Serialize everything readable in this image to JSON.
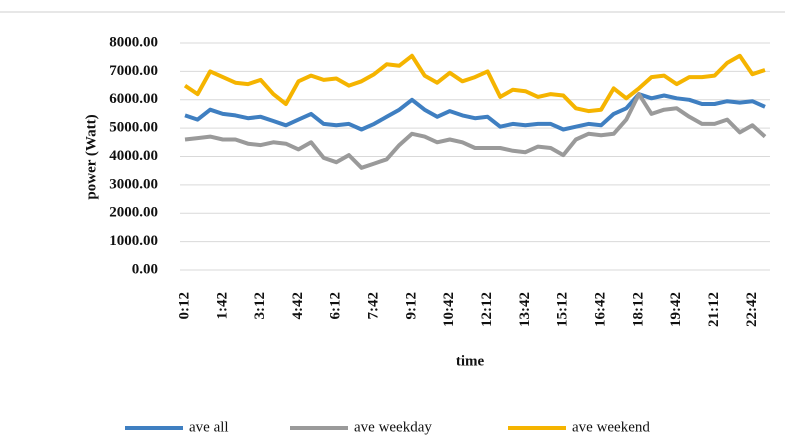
{
  "chart_data": {
    "type": "line",
    "x_label": "time",
    "y_label": "power (Watt)",
    "categories": [
      "0:12",
      null,
      null,
      "1:42",
      null,
      null,
      "3:12",
      null,
      null,
      "4:42",
      null,
      null,
      "6:12",
      null,
      null,
      "7:42",
      null,
      null,
      "9:12",
      null,
      null,
      "10:42",
      null,
      null,
      "12:12",
      null,
      null,
      "13:42",
      null,
      null,
      "15:12",
      null,
      null,
      "16:42",
      null,
      null,
      "18:12",
      null,
      null,
      "19:42",
      null,
      null,
      "21:12",
      null,
      null,
      "22:42",
      null
    ],
    "series": [
      {
        "name": "ave all",
        "color": "#3f7fc1",
        "values": [
          5450,
          5300,
          5650,
          5500,
          5450,
          5350,
          5400,
          5250,
          5100,
          5300,
          5500,
          5150,
          5100,
          5150,
          4950,
          5150,
          5400,
          5650,
          6000,
          5650,
          5400,
          5600,
          5450,
          5350,
          5400,
          5050,
          5150,
          5100,
          5150,
          5150,
          4950,
          5050,
          5150,
          5100,
          5500,
          5700,
          6200,
          6050,
          6150,
          6050,
          6000,
          5850,
          5850,
          5950,
          5900,
          5950,
          5750
        ]
      },
      {
        "name": "ave weekday",
        "color": "#9a9a9a",
        "values": [
          4600,
          4650,
          4700,
          4600,
          4600,
          4450,
          4400,
          4500,
          4450,
          4250,
          4500,
          3950,
          3800,
          4050,
          3600,
          3750,
          3900,
          4400,
          4800,
          4700,
          4500,
          4600,
          4500,
          4300,
          4300,
          4300,
          4200,
          4150,
          4350,
          4300,
          4050,
          4600,
          4800,
          4750,
          4800,
          5300,
          6200,
          5500,
          5650,
          5700,
          5400,
          5150,
          5150,
          5300,
          4850,
          5100,
          4700
        ]
      },
      {
        "name": "ave weekend",
        "color": "#f5b400",
        "values": [
          6500,
          6200,
          7000,
          6800,
          6600,
          6550,
          6700,
          6200,
          5850,
          6650,
          6850,
          6700,
          6750,
          6500,
          6650,
          6900,
          7250,
          7200,
          7550,
          6850,
          6600,
          6950,
          6650,
          6800,
          7000,
          6100,
          6350,
          6300,
          6100,
          6200,
          6150,
          5700,
          5600,
          5650,
          6400,
          6050,
          6400,
          6800,
          6850,
          6550,
          6800,
          6800,
          6850,
          7300,
          7550,
          6900,
          7050
        ]
      }
    ],
    "ylim": [
      0,
      8000
    ],
    "yticks": [
      {
        "value": 0,
        "label": "0.00"
      },
      {
        "value": 1000,
        "label": "1000.00"
      },
      {
        "value": 2000,
        "label": "2000.00"
      },
      {
        "value": 3000,
        "label": "3000.00"
      },
      {
        "value": 4000,
        "label": "4000.00"
      },
      {
        "value": 5000,
        "label": "5000.00"
      },
      {
        "value": 6000,
        "label": "6000.00"
      },
      {
        "value": 7000,
        "label": "7000.00"
      },
      {
        "value": 8000,
        "label": "8000.00"
      }
    ],
    "grid": true,
    "legend": "bottom"
  }
}
